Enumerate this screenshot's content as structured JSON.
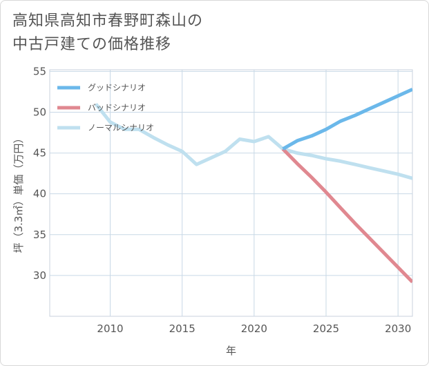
{
  "title": {
    "line1": "高知県高知市春野町森山の",
    "line2": "中古戸建ての価格推移"
  },
  "chart_data": {
    "type": "line",
    "xlabel": "年",
    "ylabel": "坪（3.3㎡）単価（万円）",
    "xlim": [
      2005.8,
      2031
    ],
    "ylim": [
      25,
      55.2
    ],
    "xticks": [
      2010,
      2015,
      2020,
      2025,
      2030
    ],
    "yticks": [
      30,
      35,
      40,
      45,
      50,
      55
    ],
    "grid": true,
    "legend_position": "top-left",
    "series": [
      {
        "name": "グッドシナリオ",
        "color": "#6bb8ea",
        "x": [
          2022,
          2023,
          2024,
          2025,
          2026,
          2027,
          2028,
          2029,
          2030,
          2031
        ],
        "y": [
          45.5,
          46.5,
          47.1,
          47.9,
          48.9,
          49.6,
          50.4,
          51.2,
          52.0,
          52.8
        ]
      },
      {
        "name": "バッドシナリオ",
        "color": "#e08890",
        "x": [
          2022,
          2023,
          2024,
          2025,
          2026,
          2027,
          2028,
          2029,
          2030,
          2031
        ],
        "y": [
          45.5,
          43.7,
          42.0,
          40.2,
          38.3,
          36.4,
          34.6,
          32.8,
          31.0,
          29.2
        ]
      },
      {
        "name": "ノーマルシナリオ",
        "color": "#bfe0ef",
        "x": [
          2009,
          2010,
          2011,
          2012,
          2013,
          2014,
          2015,
          2016,
          2017,
          2018,
          2019,
          2020,
          2021,
          2022,
          2023,
          2024,
          2025,
          2026,
          2027,
          2028,
          2029,
          2030,
          2031
        ],
        "y": [
          51.0,
          48.8,
          47.9,
          47.9,
          46.9,
          46.0,
          45.2,
          43.6,
          44.4,
          45.2,
          46.7,
          46.4,
          47.0,
          45.5,
          45.0,
          44.7,
          44.3,
          44.0,
          43.6,
          43.2,
          42.8,
          42.4,
          41.9
        ]
      }
    ]
  }
}
